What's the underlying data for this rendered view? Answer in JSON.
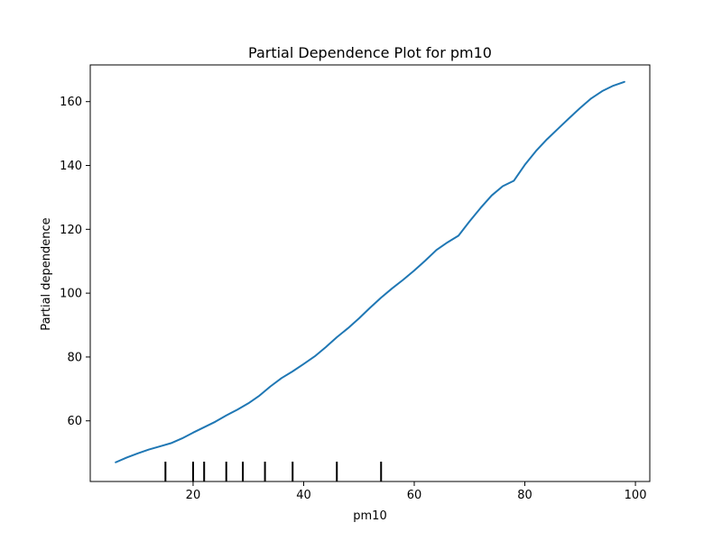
{
  "chart_data": {
    "type": "line",
    "title": "Partial Dependence Plot for pm10",
    "xlabel": "pm10",
    "ylabel": "Partial dependence",
    "xlim": [
      1.4,
      102.6
    ],
    "ylim": [
      41.0,
      171.5
    ],
    "xticks": [
      20,
      40,
      60,
      80,
      100
    ],
    "yticks": [
      60,
      80,
      100,
      120,
      140,
      160
    ],
    "grid": false,
    "line_color": "#1f77b4",
    "series": [
      {
        "x": [
          6,
          8,
          10,
          12,
          14,
          16,
          18,
          20,
          22,
          24,
          26,
          28,
          30,
          32,
          34,
          36,
          38,
          40,
          42,
          44,
          46,
          48,
          50,
          52,
          54,
          56,
          58,
          60,
          62,
          64,
          66,
          68,
          70,
          72,
          74,
          76,
          78,
          80,
          82,
          84,
          86,
          88,
          90,
          92,
          94,
          96,
          98
        ],
        "y": [
          47.0,
          48.5,
          49.8,
          51.0,
          52.0,
          53.0,
          54.5,
          56.3,
          58.0,
          59.7,
          61.7,
          63.5,
          65.5,
          67.9,
          70.8,
          73.4,
          75.5,
          77.8,
          80.2,
          83.1,
          86.2,
          89.0,
          92.1,
          95.4,
          98.6,
          101.5,
          104.2,
          107.1,
          110.2,
          113.5,
          115.9,
          118.0,
          122.5,
          126.7,
          130.6,
          133.5,
          135.2,
          140.2,
          144.5,
          148.2,
          151.5,
          154.8,
          158.0,
          161.0,
          163.3,
          165.0,
          166.2
        ]
      }
    ],
    "rug_x": [
      15,
      20,
      22,
      26,
      29,
      33,
      38,
      46,
      54
    ]
  }
}
